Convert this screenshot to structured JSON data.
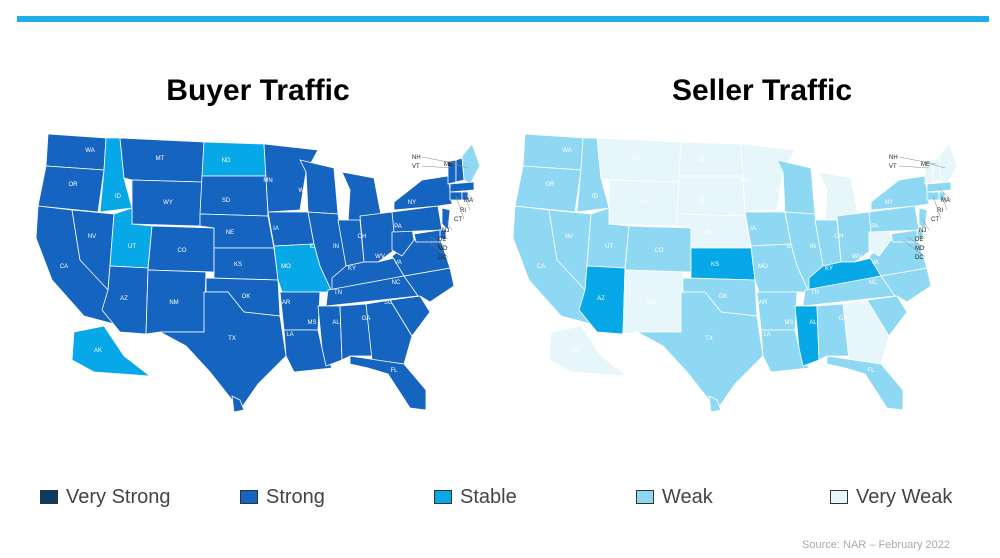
{
  "colors": {
    "very_strong": "#0b3b63",
    "strong": "#1565c0",
    "stable": "#06a8e8",
    "weak": "#8fd8f4",
    "very_weak": "#e7f6fb",
    "accent_bar": "#1faee8"
  },
  "maps": [
    {
      "id": "buyer",
      "title": "Buyer Traffic",
      "default_level": "strong",
      "overrides": {
        "ID": "stable",
        "UT": "stable",
        "ND": "stable",
        "MO": "stable",
        "AK": "stable",
        "ME": "weak"
      }
    },
    {
      "id": "seller",
      "title": "Seller Traffic",
      "default_level": "weak",
      "overrides": {
        "MT": "very_weak",
        "WY": "very_weak",
        "ND": "very_weak",
        "SD": "very_weak",
        "NE": "very_weak",
        "MN": "very_weak",
        "MI": "very_weak",
        "NM": "very_weak",
        "AK": "very_weak",
        "WV": "very_weak",
        "GA": "very_weak",
        "VT": "very_weak",
        "NH": "very_weak",
        "ME": "very_weak",
        "KS": "stable",
        "AZ": "stable",
        "KY": "stable",
        "MS": "stable"
      }
    }
  ],
  "state_labels": [
    "WA",
    "OR",
    "CA",
    "NV",
    "ID",
    "MT",
    "WY",
    "UT",
    "AZ",
    "CO",
    "NM",
    "ND",
    "SD",
    "NE",
    "KS",
    "OK",
    "TX",
    "MN",
    "IA",
    "MO",
    "AR",
    "LA",
    "WI",
    "IL",
    "MI",
    "IN",
    "OH",
    "KY",
    "TN",
    "MS",
    "AL",
    "GA",
    "FL",
    "SC",
    "NC",
    "VA",
    "WV",
    "PA",
    "NY",
    "AK",
    "HI"
  ],
  "external_labels": [
    "NH",
    "VT",
    "ME",
    "MA",
    "RI",
    "CT",
    "NJ",
    "DE",
    "MD",
    "DC"
  ],
  "legend": [
    {
      "level": "very_strong",
      "label": "Very Strong"
    },
    {
      "level": "strong",
      "label": "Strong"
    },
    {
      "level": "stable",
      "label": "Stable"
    },
    {
      "level": "weak",
      "label": "Weak"
    },
    {
      "level": "very_weak",
      "label": "Very Weak"
    }
  ],
  "source": "Source: NAR – February 2022"
}
